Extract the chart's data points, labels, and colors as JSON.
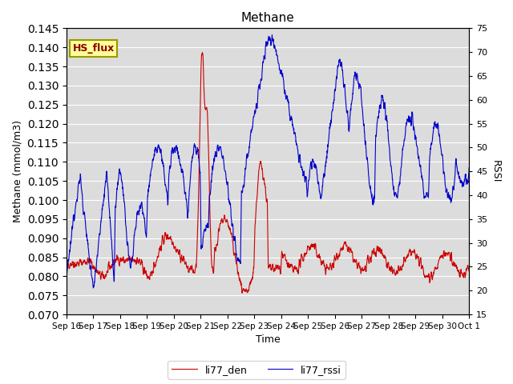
{
  "title": "Methane",
  "ylabel_left": "Methane (mmol/m3)",
  "ylabel_right": "RSSI",
  "xlabel": "Time",
  "ylim_left": [
    0.07,
    0.145
  ],
  "ylim_right": [
    15,
    75
  ],
  "annotation_text": "HS_flux",
  "annotation_bg": "#FFFF99",
  "annotation_border": "#999900",
  "line1_color": "#CC0000",
  "line2_color": "#0000CC",
  "line1_label": "li77_den",
  "line2_label": "li77_rssi",
  "bg_color": "#DCDCDC",
  "fig_bg": "#FFFFFF",
  "grid_color": "#FFFFFF",
  "xtick_labels": [
    "Sep 16",
    "Sep 17",
    "Sep 18",
    "Sep 19",
    "Sep 20",
    "Sep 21",
    "Sep 22",
    "Sep 23",
    "Sep 24",
    "Sep 25",
    "Sep 26",
    "Sep 27",
    "Sep 28",
    "Sep 29",
    "Sep 30",
    "Oct 1"
  ],
  "xtick_positions": [
    0,
    1,
    2,
    3,
    4,
    5,
    6,
    7,
    8,
    9,
    10,
    11,
    12,
    13,
    14,
    15
  ]
}
